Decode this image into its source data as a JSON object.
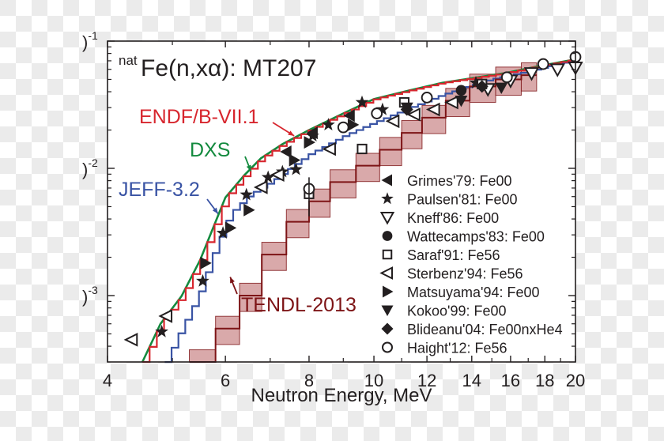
{
  "chart_data": {
    "type": "line",
    "title": "Fe(n,xα): MT207",
    "title_prefix": "nat",
    "xlabel": "Neutron Energy, MeV",
    "ylabel": "",
    "xscale": "log",
    "yscale": "log",
    "xlim": [
      4,
      20
    ],
    "ylim": [
      0.0003,
      0.1
    ],
    "x_ticks": [
      {
        "value": 4,
        "label": "4"
      },
      {
        "value": 6,
        "label": "6"
      },
      {
        "value": 8,
        "label": "8"
      },
      {
        "value": 10,
        "label": "10"
      },
      {
        "value": 12,
        "label": "12"
      },
      {
        "value": 14,
        "label": "14"
      },
      {
        "value": 16,
        "label": "16"
      },
      {
        "value": 18,
        "label": "18"
      },
      {
        "value": 20,
        "label": "20"
      }
    ],
    "x_minor_ticks": [
      5,
      7,
      9,
      11,
      13,
      15,
      17,
      19
    ],
    "y_ticks": [
      {
        "value": 0.1,
        "label": ")",
        "exp": "-1"
      },
      {
        "value": 0.01,
        "label": ")",
        "exp": "-2"
      },
      {
        "value": 0.001,
        "label": ")",
        "exp": "-3"
      }
    ],
    "y_minor_ticks": [
      0.0004,
      0.0005,
      0.0006,
      0.0007,
      0.0008,
      0.0009,
      0.002,
      0.003,
      0.004,
      0.005,
      0.006,
      0.007,
      0.008,
      0.009,
      0.02,
      0.03,
      0.04,
      0.05,
      0.06,
      0.07,
      0.08,
      0.09
    ],
    "series": [
      {
        "name": "ENDF/B-VII.1",
        "color": "#d7262e",
        "style": "step",
        "x": [
          4.51,
          4.8,
          5.16,
          5.5,
          6.0,
          6.4,
          6.78,
          7.3,
          8.0,
          9.0,
          10.0,
          11.3,
          12.65,
          14.0,
          15.7,
          17.5,
          20.0
        ],
        "y": [
          0.0003,
          0.0006,
          0.00099,
          0.0019,
          0.0059,
          0.0088,
          0.012,
          0.0155,
          0.02,
          0.027,
          0.035,
          0.041,
          0.047,
          0.051,
          0.056,
          0.063,
          0.072
        ]
      },
      {
        "name": "DXS",
        "color": "#138a3e",
        "style": "line",
        "x": [
          4.51,
          4.8,
          5.16,
          5.5,
          6.0,
          6.4,
          6.78,
          7.3,
          8.0,
          9.0,
          10.0,
          11.3,
          12.65,
          14.0,
          15.7,
          17.5,
          20.0
        ],
        "y": [
          0.0003,
          0.0006,
          0.00099,
          0.0019,
          0.0059,
          0.0088,
          0.012,
          0.0155,
          0.02,
          0.027,
          0.035,
          0.041,
          0.047,
          0.051,
          0.056,
          0.063,
          0.072
        ]
      },
      {
        "name": "JEFF-3.2",
        "color": "#3953a4",
        "style": "step",
        "x": [
          4.87,
          5.1,
          5.45,
          5.75,
          6.08,
          6.5,
          7.0,
          7.5,
          8.0,
          9.0,
          10.0,
          11.3,
          12.65,
          14.9,
          17.0,
          20.0
        ],
        "y": [
          0.0003,
          0.0005,
          0.001,
          0.0022,
          0.0044,
          0.0062,
          0.0078,
          0.0102,
          0.013,
          0.018,
          0.023,
          0.03,
          0.038,
          0.05,
          0.058,
          0.072
        ]
      },
      {
        "name": "TENDL-2013",
        "color": "#7d1416",
        "fill": "#d9a9aa",
        "style": "band-step",
        "band_fraction": 0.25,
        "x": [
          5.3,
          5.8,
          6.3,
          6.8,
          7.4,
          8.0,
          8.6,
          9.4,
          10.2,
          11.0,
          11.8,
          12.8,
          13.9,
          15.2,
          16.6,
          17.5
        ],
        "y": [
          0.0003,
          0.00055,
          0.001,
          0.0021,
          0.0038,
          0.0055,
          0.0078,
          0.0105,
          0.014,
          0.019,
          0.025,
          0.034,
          0.044,
          0.05,
          0.054,
          0.06
        ]
      }
    ],
    "experimental": [
      {
        "name": "Grimes'79: Fe00",
        "marker": "triangle-left-filled",
        "points": [
          [
            9.2,
            0.026
          ],
          [
            8.1,
            0.019
          ],
          [
            7.4,
            0.0135
          ]
        ]
      },
      {
        "name": "Paulsen'81: Fe00",
        "marker": "star",
        "points": [
          [
            4.82,
            0.00052
          ],
          [
            5.55,
            0.0013
          ],
          [
            5.95,
            0.0031
          ],
          [
            6.45,
            0.0062
          ],
          [
            6.95,
            0.0085
          ],
          [
            7.3,
            0.0094
          ],
          [
            7.65,
            0.0098
          ],
          [
            8.1,
            0.018
          ],
          [
            8.55,
            0.022
          ],
          [
            9.6,
            0.033
          ],
          [
            10.3,
            0.029
          ],
          [
            14.2,
            0.047
          ]
        ]
      },
      {
        "name": "Kneff'86: Fe00",
        "marker": "triangle-down-open",
        "points": [
          [
            14.8,
            0.042
          ],
          [
            16.0,
            0.049
          ],
          [
            17.2,
            0.056
          ],
          [
            18.8,
            0.06
          ],
          [
            20.0,
            0.062
          ]
        ]
      },
      {
        "name": "Wattecamps'83: Fe00",
        "marker": "circle-filled",
        "points": [
          [
            13.5,
            0.041
          ]
        ]
      },
      {
        "name": "Saraf'91: Fe56",
        "marker": "square-open",
        "points": [
          [
            8.0,
            0.0063
          ],
          [
            9.6,
            0.0142
          ],
          [
            11.1,
            0.033
          ],
          [
            14.5,
            0.046
          ]
        ]
      },
      {
        "name": "Sterbenz'94: Fe56",
        "marker": "triangle-left-open",
        "points": [
          [
            4.35,
            0.00045
          ],
          [
            4.9,
            0.00069
          ],
          [
            6.8,
            0.0071
          ],
          [
            7.2,
            0.0089
          ],
          [
            8.6,
            0.0142
          ],
          [
            10.7,
            0.0235
          ],
          [
            11.5,
            0.0265
          ],
          [
            12.3,
            0.029
          ],
          [
            13.1,
            0.033
          ]
        ]
      },
      {
        "name": "Matsuyama'94: Fe00",
        "marker": "triangle-right-filled",
        "points": [
          [
            5.6,
            0.0018
          ],
          [
            6.1,
            0.0034
          ],
          [
            6.5,
            0.0047
          ],
          [
            7.6,
            0.0116
          ],
          [
            8.0,
            0.016
          ],
          [
            9.3,
            0.022
          ]
        ]
      },
      {
        "name": "Kokoo'99: Fe00",
        "marker": "triangle-down-filled",
        "points": [
          [
            11.2,
            0.03
          ],
          [
            13.5,
            0.034
          ],
          [
            15.5,
            0.043
          ]
        ]
      },
      {
        "name": "Blideanu'04: Fe00nxHe4",
        "marker": "diamond-filled",
        "points": [
          [
            11.2,
            0.029
          ],
          [
            14.5,
            0.044
          ]
        ]
      },
      {
        "name": "Haight'12: Fe56",
        "marker": "circle-open",
        "points": [
          [
            8.0,
            0.0069
          ],
          [
            9.0,
            0.021
          ],
          [
            10.1,
            0.027
          ],
          [
            12.0,
            0.036
          ],
          [
            15.8,
            0.052
          ],
          [
            17.9,
            0.066
          ],
          [
            20.0,
            0.075
          ]
        ]
      }
    ],
    "annotations": [
      {
        "text": "ENDF/B-VII.1",
        "color": "#d7262e",
        "points_to": [
          7.6,
          0.018
        ]
      },
      {
        "text": "DXS",
        "color": "#138a3e",
        "points_to": [
          6.55,
          0.0095
        ]
      },
      {
        "text": "JEFF-3.2",
        "color": "#3953a4",
        "points_to": [
          5.85,
          0.0044
        ]
      },
      {
        "text": "TENDL-2013",
        "color": "#7d1416",
        "points_to": [
          6.1,
          0.0014
        ]
      }
    ],
    "legend_position": "center-right",
    "grid": false
  }
}
